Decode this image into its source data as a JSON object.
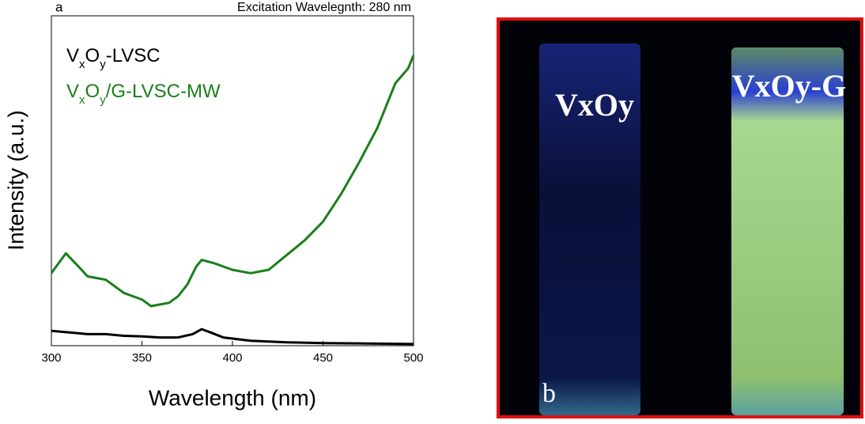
{
  "chart_data": {
    "type": "line",
    "panel_label": "a",
    "subtitle": "Excitation Wavelegnth: 280 nm",
    "x_label": "Wavelength (nm)",
    "y_label": "Intensity (a.u.)",
    "xlim": [
      300,
      500
    ],
    "xticks": [
      300,
      350,
      400,
      450,
      500
    ],
    "ylim": [
      0,
      100
    ],
    "series": [
      {
        "name": "VxOy-LVSC",
        "color": "#000000",
        "x": [
          300,
          310,
          320,
          330,
          340,
          350,
          360,
          370,
          378,
          383,
          388,
          395,
          410,
          430,
          450,
          470,
          500
        ],
        "values": [
          4.5,
          4,
          3.5,
          3.5,
          3,
          2.8,
          2.5,
          2.5,
          3.5,
          5,
          4,
          2.5,
          1.5,
          1,
          0.8,
          0.7,
          0.5
        ]
      },
      {
        "name": "VxOy/G-LVSC-MW",
        "color": "#1a7f1a",
        "x": [
          300,
          308,
          315,
          320,
          330,
          340,
          350,
          355,
          360,
          365,
          370,
          375,
          380,
          383,
          390,
          400,
          410,
          420,
          430,
          440,
          450,
          460,
          470,
          480,
          490,
          497,
          500
        ],
        "values": [
          22,
          28,
          24,
          21,
          20,
          16,
          14,
          12,
          12.5,
          13,
          15,
          18.5,
          24,
          26,
          25,
          23,
          22,
          23,
          27.5,
          32,
          37.6,
          46,
          55.6,
          66,
          79.6,
          84,
          88
        ]
      }
    ]
  },
  "photo": {
    "panel_label": "b",
    "labels": [
      "VxOy",
      "VxOy-G"
    ]
  }
}
